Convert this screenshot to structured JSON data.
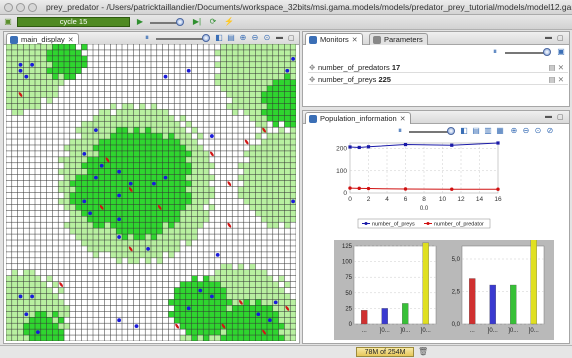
{
  "window": {
    "title": "prey_predator - /Users/patricktaillandier/Documents/workspace_32bits/msi.gama.models/models/predator_prey_tutorial/models/model12.gaml"
  },
  "toolbar": {
    "cycle_label": "cycle 15",
    "play_icon": "play-icon",
    "step_icon": "step-icon",
    "reload_icon": "reload-icon",
    "lightning_icon": "lightning-icon"
  },
  "main_display": {
    "tab_label": "main_display",
    "colors": {
      "light_green": "#b8f0a0",
      "green": "#2fd52f",
      "white": "#ffffff",
      "prey": "#1a1adb",
      "predator": "#d31515",
      "grid_line": "#333333"
    }
  },
  "monitors": {
    "tab_label": "Monitors",
    "params_tab_label": "Parameters",
    "rows": [
      {
        "name": "number_of_predators",
        "value": "17"
      },
      {
        "name": "number_of_preys",
        "value": "225"
      }
    ]
  },
  "population": {
    "tab_label": "Population_information"
  },
  "chart_data": [
    {
      "type": "line",
      "x": [
        0,
        1,
        2,
        6,
        11,
        16
      ],
      "series": [
        {
          "name": "number_of_preys",
          "color": "#1a1aa8",
          "values": [
            207,
            205,
            208,
            218,
            215,
            225
          ]
        },
        {
          "name": "number_of_predator",
          "color": "#d01010",
          "values": [
            22,
            21,
            20,
            18,
            17,
            17
          ]
        }
      ],
      "xlabel": "0.0",
      "xlim": [
        0,
        16
      ],
      "ylim": [
        0,
        225
      ],
      "yticks": [
        "0",
        "100",
        "200"
      ],
      "xticks": [
        "0",
        "2",
        "4",
        "6",
        "8",
        "10",
        "12",
        "14",
        "16"
      ],
      "legend": "bottom"
    },
    {
      "type": "bar",
      "categories": [
        "...",
        "]0...",
        "]0...",
        "]0..."
      ],
      "series": [
        {
          "values": [
            22,
            25,
            33,
            130
          ]
        }
      ],
      "colors": [
        "#d03030",
        "#3a3ad0",
        "#37c037",
        "#e0e020"
      ],
      "ylim": [
        0,
        125
      ],
      "yticks": [
        "0",
        "25",
        "50",
        "75",
        "100",
        "125"
      ]
    },
    {
      "type": "bar",
      "categories": [
        "...",
        "]0...",
        "]0...",
        "]0..."
      ],
      "series": [
        {
          "values": [
            3.5,
            3.0,
            3.0,
            6.7
          ]
        }
      ],
      "colors": [
        "#d03030",
        "#3a3ad0",
        "#37c037",
        "#e0e020"
      ],
      "ylim": [
        0,
        6.0
      ],
      "yticks": [
        "0,0",
        "2,5",
        "5,0"
      ]
    }
  ],
  "status": {
    "heap_label": "78M of 254M",
    "trash_icon": "trash-icon"
  }
}
